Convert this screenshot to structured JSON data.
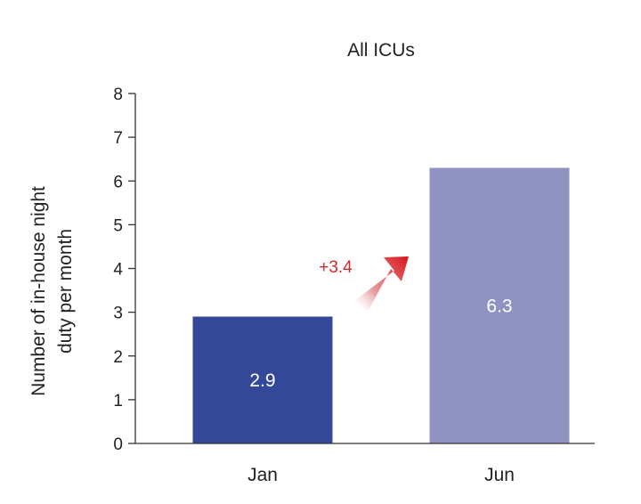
{
  "chart_data": {
    "type": "bar",
    "title": "All ICUs",
    "ylabel_lines": [
      "Number of in-house night",
      "duty per month"
    ],
    "xlabel": "",
    "categories": [
      "Jan",
      "Jun"
    ],
    "values": [
      2.9,
      6.3
    ],
    "value_labels": [
      "2.9",
      "6.3"
    ],
    "bar_colors": [
      "#34489a",
      "#9092c2"
    ],
    "ylim": [
      0,
      8
    ],
    "yticks": [
      0,
      1,
      2,
      3,
      4,
      5,
      6,
      7,
      8
    ],
    "grid": false,
    "annotation": {
      "text": "+3.4",
      "color": "#d7262a"
    }
  }
}
